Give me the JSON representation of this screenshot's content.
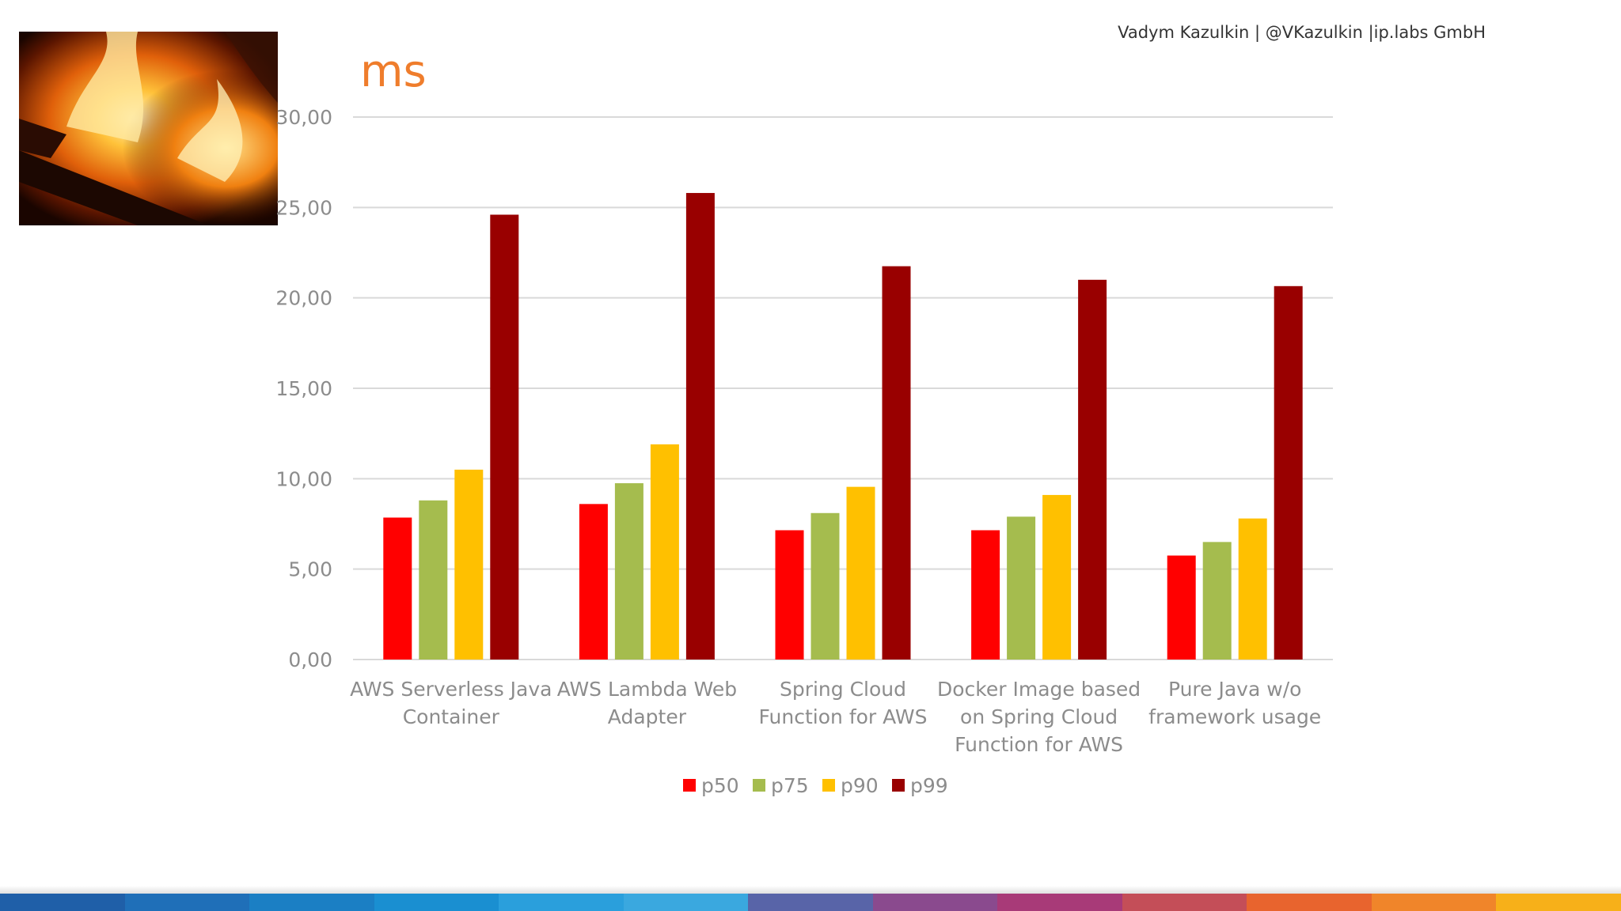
{
  "header": {
    "attribution": "Vadym Kazulkin | @VKazulkin |ip.labs GmbH",
    "unit_title": "ms"
  },
  "photo": {
    "icon": "fire-icon"
  },
  "colors": {
    "title": "#ef7d2c",
    "grid": "#d9d9d9",
    "axis_text": "#8c8c8c",
    "bottom_bar": [
      "#1f5fa8",
      "#1f6fb8",
      "#1b7fc4",
      "#1a8fd1",
      "#2a9fdc",
      "#3aa8df",
      "#5864a8",
      "#8a4a8e",
      "#a83a78",
      "#c44e58",
      "#e8642e",
      "#f0852a",
      "#f7b019"
    ]
  },
  "chart_data": {
    "type": "bar",
    "title": "ms",
    "xlabel": "",
    "ylabel": "",
    "ylim": [
      0,
      30
    ],
    "yticks": [
      0,
      5,
      10,
      15,
      20,
      25,
      30
    ],
    "ytick_labels": [
      "0,00",
      "5,00",
      "10,00",
      "15,00",
      "20,00",
      "25,00",
      "30,00"
    ],
    "grid": true,
    "legend_position": "bottom",
    "categories": [
      [
        "AWS Serverless Java",
        "Container"
      ],
      [
        "AWS Lambda Web",
        "Adapter"
      ],
      [
        "Spring Cloud",
        "Function for AWS"
      ],
      [
        "Docker Image based",
        "on Spring Cloud",
        "Function for AWS"
      ],
      [
        "Pure Java w/o",
        "framework usage"
      ]
    ],
    "series": [
      {
        "name": "p50",
        "color": "#ff0000",
        "values": [
          7.85,
          8.6,
          7.15,
          7.15,
          5.75
        ]
      },
      {
        "name": "p75",
        "color": "#a5bc4e",
        "values": [
          8.8,
          9.75,
          8.1,
          7.9,
          6.5
        ]
      },
      {
        "name": "p90",
        "color": "#ffc000",
        "values": [
          10.5,
          11.9,
          9.55,
          9.1,
          7.8
        ]
      },
      {
        "name": "p99",
        "color": "#990000",
        "values": [
          24.6,
          25.8,
          21.75,
          21.0,
          20.65
        ]
      }
    ]
  }
}
